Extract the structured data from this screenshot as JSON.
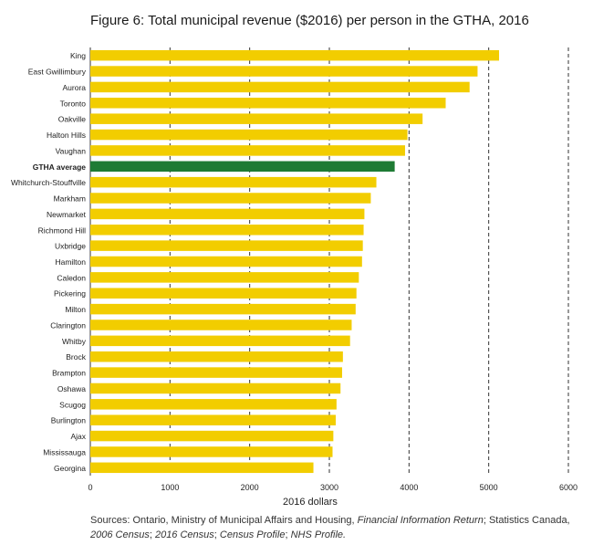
{
  "chart_data": {
    "type": "bar",
    "orientation": "horizontal",
    "title": "Figure 6: Total municipal revenue ($2016) per person in the GTHA, 2016",
    "xlabel": "2016 dollars",
    "ylabel": "",
    "xlim": [
      0,
      6000
    ],
    "xticks": [
      0,
      1000,
      2000,
      3000,
      4000,
      5000,
      6000
    ],
    "grid": "vertical dashed",
    "colors": {
      "bar": "#F2CD00",
      "highlight": "#1E7B34",
      "grid": "#333333"
    },
    "highlight_category": "GTHA average",
    "categories": [
      "King",
      "East Gwillimbury",
      "Aurora",
      "Toronto",
      "Oakville",
      "Halton Hills",
      "Vaughan",
      "GTHA average",
      "Whitchurch-Stouffville",
      "Markham",
      "Newmarket",
      "Richmond Hill",
      "Uxbridge",
      "Hamilton",
      "Caledon",
      "Pickering",
      "Milton",
      "Clarington",
      "Whitby",
      "Brock",
      "Brampton",
      "Oshawa",
      "Scugog",
      "Burlington",
      "Ajax",
      "Mississauga",
      "Georgina"
    ],
    "values": [
      5130,
      4860,
      4760,
      4460,
      4170,
      3980,
      3950,
      3820,
      3590,
      3520,
      3440,
      3430,
      3420,
      3410,
      3370,
      3340,
      3330,
      3280,
      3260,
      3170,
      3160,
      3140,
      3090,
      3080,
      3050,
      3040,
      2800
    ]
  },
  "source": {
    "prefix": "Sources: Ontario, Ministry of Municipal Affairs and Housing, ",
    "fir": "Financial Information Return",
    "mid": "; Statistics Canada, ",
    "census2006": "2006 Census",
    "sep1": "; ",
    "census2016": "2016 Census",
    "sep2": "; ",
    "profile": "Census Profile",
    "sep3": "; ",
    "nhs": "NHS Profile.",
    "end": ""
  }
}
